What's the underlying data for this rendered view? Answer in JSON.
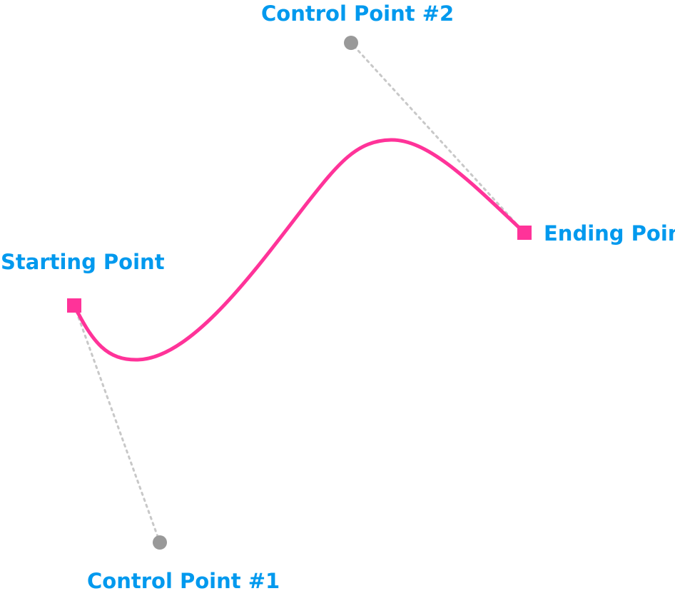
{
  "labels": {
    "starting_point": "Starting Point",
    "ending_point": "Ending Point",
    "control_point_1": "Control Point #1",
    "control_point_2": "Control Point #2"
  },
  "colors": {
    "curve": "#ff3399",
    "label": "#0099ee",
    "control_point": "#999999",
    "guide_line": "#c8c8c8",
    "background": "#ffffff"
  }
}
